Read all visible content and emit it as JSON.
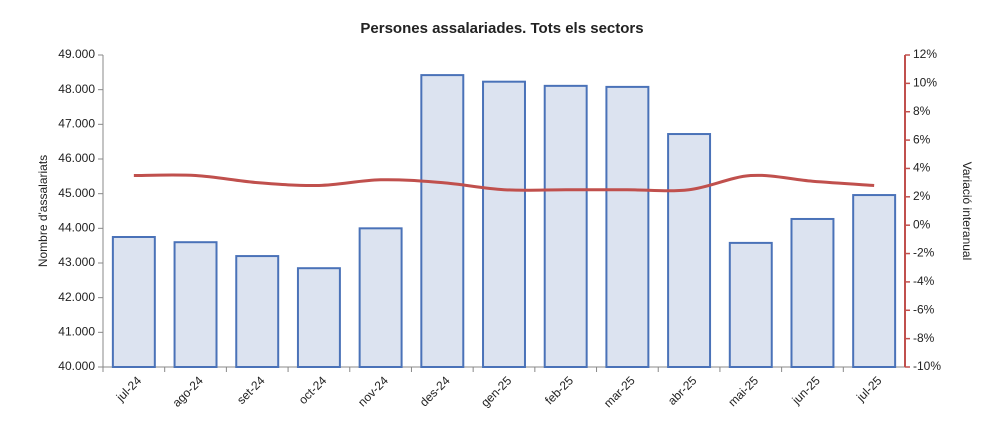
{
  "chart_data": {
    "type": "bar_line",
    "title": "Persones assalariades. Tots els sectors",
    "y_label": "Nombre d'assalariats",
    "y2_label": "Variació interanual",
    "categories": [
      "jul-24",
      "ago-24",
      "set-24",
      "oct-24",
      "nov-24",
      "des-24",
      "gen-25",
      "feb-25",
      "mar-25",
      "abr-25",
      "mai-25",
      "jun-25",
      "jul-25"
    ],
    "series": [
      {
        "type": "bar",
        "fill": "#dce3f0",
        "color": "#4a72b8",
        "values": [
          43750,
          43600,
          43200,
          42850,
          44000,
          48420,
          48230,
          48110,
          48080,
          46720,
          43580,
          44270,
          44960
        ]
      },
      {
        "type": "line",
        "axis": "y2",
        "color": "#c0504d",
        "values": [
          3.5,
          3.5,
          3.0,
          2.8,
          3.2,
          3.0,
          2.5,
          2.5,
          2.5,
          2.5,
          3.5,
          3.1,
          2.8
        ]
      }
    ],
    "ylim": [
      40000,
      49000
    ],
    "yticks": [
      {
        "value": 40000,
        "label": "40.000"
      },
      {
        "value": 41000,
        "label": "41.000"
      },
      {
        "value": 42000,
        "label": "42.000"
      },
      {
        "value": 43000,
        "label": "43.000"
      },
      {
        "value": 44000,
        "label": "44.000"
      },
      {
        "value": 45000,
        "label": "45.000"
      },
      {
        "value": 46000,
        "label": "46.000"
      },
      {
        "value": 47000,
        "label": "47.000"
      },
      {
        "value": 48000,
        "label": "48.000"
      },
      {
        "value": 49000,
        "label": "49.000"
      }
    ],
    "y2lim": [
      -10,
      12
    ],
    "y2ticks": [
      {
        "value": -10,
        "label": "-10%"
      },
      {
        "value": -8,
        "label": "-8%"
      },
      {
        "value": -6,
        "label": "-6%"
      },
      {
        "value": -4,
        "label": "-4%"
      },
      {
        "value": -2,
        "label": "-2%"
      },
      {
        "value": 0,
        "label": "0%"
      },
      {
        "value": 2,
        "label": "2%"
      },
      {
        "value": 4,
        "label": "4%"
      },
      {
        "value": 6,
        "label": "6%"
      },
      {
        "value": 8,
        "label": "8%"
      },
      {
        "value": 10,
        "label": "10%"
      },
      {
        "value": 12,
        "label": "12%"
      }
    ],
    "y2_axis_color": "#c0504d",
    "grid": false
  }
}
